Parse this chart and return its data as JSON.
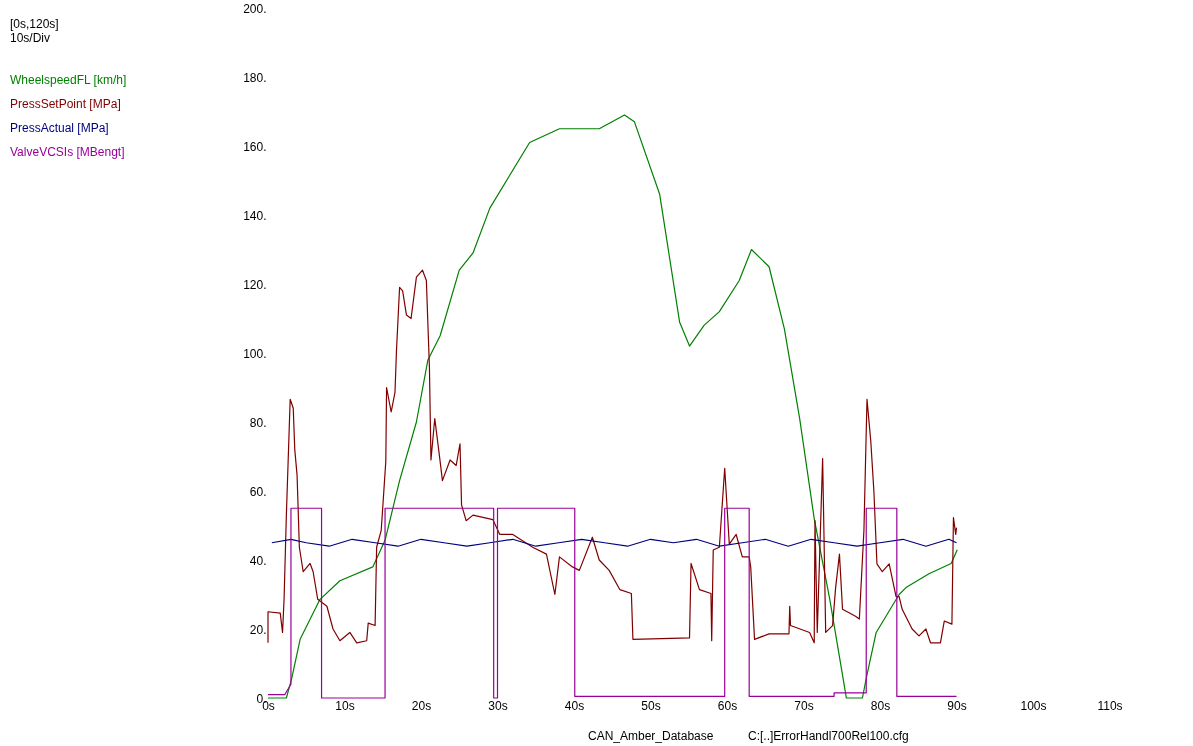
{
  "chart_data": {
    "type": "line",
    "legend": "left",
    "grid": false,
    "line_style": "solid",
    "marker": "none",
    "xlim": [
      0,
      120
    ],
    "ylim": [
      0,
      200
    ],
    "xticks": [
      {
        "value": 0,
        "label": "0s"
      },
      {
        "value": 10,
        "label": "10s"
      },
      {
        "value": 20,
        "label": "20s"
      },
      {
        "value": 30,
        "label": "30s"
      },
      {
        "value": 40,
        "label": "40s"
      },
      {
        "value": 50,
        "label": "50s"
      },
      {
        "value": 60,
        "label": "60s"
      },
      {
        "value": 70,
        "label": "70s"
      },
      {
        "value": 80,
        "label": "80s"
      },
      {
        "value": 90,
        "label": "90s"
      },
      {
        "value": 100,
        "label": "100s"
      },
      {
        "value": 110,
        "label": "110s"
      }
    ],
    "yticks": [
      {
        "value": 0,
        "label": "0."
      },
      {
        "value": 20,
        "label": "20."
      },
      {
        "value": 40,
        "label": "40."
      },
      {
        "value": 60,
        "label": "60."
      },
      {
        "value": 80,
        "label": "80."
      },
      {
        "value": 100,
        "label": "100."
      },
      {
        "value": 120,
        "label": "120."
      },
      {
        "value": 140,
        "label": "140."
      },
      {
        "value": 160,
        "label": "160."
      },
      {
        "value": 180,
        "label": "180."
      },
      {
        "value": 200,
        "label": "200."
      }
    ],
    "annotations": [
      "[0s,120s]",
      "10s/Div",
      "CAN_Amber_Database",
      "C:[..]ErrorHandl700Rel100.cfg"
    ],
    "series": [
      {
        "name": "WheelspeedFL [km/h]",
        "color": "#008000",
        "x": [
          0,
          2.4,
          3.1,
          4.2,
          6.8,
          9.4,
          13.7,
          15.3,
          17.2,
          19.4,
          20.9,
          22.5,
          25,
          26.8,
          29,
          34.2,
          38.1,
          43.3,
          46.6,
          47.9,
          51.2,
          53.8,
          55.1,
          57,
          59,
          61.6,
          63.2,
          65.5,
          67.5,
          69.5,
          71.4,
          73.4,
          75.3,
          75.6,
          77.7,
          78.2,
          79.5,
          82.5,
          83.4,
          86.4,
          89.3,
          90.1
        ],
        "values": [
          0,
          0,
          5.7,
          17,
          28.6,
          34,
          38,
          45.7,
          63,
          80,
          98,
          105,
          124,
          129,
          142,
          161,
          165,
          165,
          169,
          167,
          146,
          109,
          102,
          108,
          112,
          121,
          130,
          125,
          107,
          81,
          52,
          29,
          4,
          0,
          0,
          5.7,
          19,
          30,
          32,
          36,
          39,
          43
        ]
      },
      {
        "name": "PressSetPoint [MPa]",
        "color": "#800000",
        "x": [
          0,
          0,
          1.6,
          1.9,
          2.1,
          2.4,
          2.9,
          3.3,
          3.5,
          3.8,
          4.1,
          4.6,
          5.5,
          5.9,
          6.5,
          7.7,
          8.5,
          9.4,
          10.7,
          11.6,
          12.9,
          13.1,
          14,
          14.2,
          14.8,
          15.4,
          15.5,
          16.1,
          16.6,
          16.8,
          17.2,
          17.6,
          18.1,
          18.7,
          19.4,
          20.2,
          20.7,
          21.1,
          21.3,
          21.8,
          22.5,
          22.8,
          23.8,
          24.6,
          25.1,
          25.3,
          25.9,
          26.8,
          29.4,
          30.3,
          32,
          34.6,
          36.4,
          37.5,
          38.1,
          39.8,
          40.7,
          42.4,
          43.3,
          44.6,
          46,
          47.5,
          47.7,
          55.1,
          55.3,
          56.4,
          57.9,
          58,
          58.2,
          59,
          59.7,
          60.3,
          61.2,
          62,
          62.9,
          63.1,
          63.6,
          65.5,
          68.1,
          68.2,
          68.3,
          70.8,
          71.4,
          71.5,
          71.8,
          72.5,
          72.9,
          73.8,
          74.2,
          74.7,
          75.1,
          76.8,
          77.3,
          77.9,
          78.3,
          78.8,
          79.2,
          79.6,
          80.3,
          81.2,
          82.1,
          82.5,
          82.9,
          84.2,
          85.1,
          86,
          86.6,
          87.9,
          88.4,
          89.4,
          89.6,
          89.9,
          90
        ],
        "values": [
          16,
          25,
          24.6,
          19,
          28.6,
          53,
          86.6,
          84,
          72,
          64.6,
          43.7,
          36.6,
          39,
          36.6,
          28.6,
          26.6,
          20,
          16.6,
          19,
          16,
          16.6,
          21.7,
          21,
          43.7,
          48.6,
          68.6,
          90,
          82.9,
          88.6,
          101,
          119,
          118,
          111,
          110,
          122,
          124,
          121,
          96,
          69,
          81,
          68.6,
          63,
          69,
          67.4,
          73.7,
          56,
          51.4,
          53,
          51.7,
          47.4,
          47.4,
          43.7,
          41.7,
          30,
          40.9,
          38,
          37,
          46.6,
          40,
          37,
          31.4,
          30.3,
          17,
          17.4,
          39,
          31.4,
          30.3,
          16.6,
          42.9,
          43.7,
          66.6,
          44.6,
          47.4,
          40.9,
          40.9,
          38,
          17,
          18.6,
          18.6,
          26.6,
          21,
          19,
          16,
          51.4,
          19,
          69.4,
          19,
          21,
          32,
          41.7,
          25.7,
          23.7,
          22.9,
          48.6,
          86.6,
          74.3,
          60,
          38.9,
          36.6,
          38.9,
          29.4,
          29.4,
          25.7,
          20,
          18,
          20,
          16,
          16,
          22.3,
          21.4,
          52.3,
          47.4,
          49.4
        ]
      },
      {
        "name": "PressActual [MPa]",
        "color": "#000080",
        "x": [
          0.5,
          3,
          5,
          8,
          11,
          14,
          17,
          20,
          23,
          26,
          29,
          32,
          35,
          38,
          41,
          44,
          47,
          50,
          53,
          56,
          59,
          62,
          65,
          68,
          71,
          74,
          77,
          80,
          83,
          86,
          89,
          90
        ],
        "values": [
          45,
          46,
          45,
          44,
          46,
          45,
          44,
          46,
          45,
          44,
          45,
          46,
          44,
          45,
          46,
          45,
          44,
          46,
          45,
          46,
          44,
          45,
          46,
          44,
          46,
          45,
          44,
          45,
          46,
          44,
          46,
          45
        ]
      },
      {
        "name": "ValveVCSIs [MBengt]",
        "color": "#990099",
        "x": [
          0,
          2.2,
          3,
          3,
          7,
          7,
          15.3,
          15.3,
          29.5,
          29.5,
          30,
          30,
          40.1,
          40.1,
          59.7,
          59.7,
          62.9,
          62.9,
          74,
          74,
          78.2,
          78.2,
          82.2,
          82.2,
          90
        ],
        "values": [
          1,
          1,
          4,
          55,
          55,
          0,
          0,
          55,
          55,
          0,
          0,
          55,
          55,
          0.5,
          0.5,
          55,
          55,
          0.5,
          0.5,
          1.5,
          1.5,
          55,
          55,
          0.5,
          0.5
        ]
      }
    ]
  }
}
